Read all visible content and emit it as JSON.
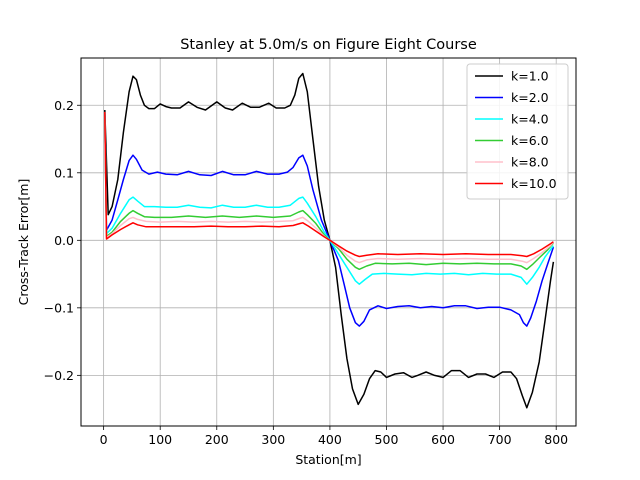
{
  "chart_data": {
    "type": "line",
    "title": "Stanley at 5.0m/s on Figure Eight Course",
    "xlabel": "Station[m]",
    "ylabel": "Cross-Track Error[m]",
    "xlim": [
      -40,
      835
    ],
    "ylim": [
      -0.275,
      0.27
    ],
    "xticks": [
      0,
      100,
      200,
      300,
      400,
      500,
      600,
      700,
      800
    ],
    "yticks": [
      -0.2,
      -0.1,
      0.0,
      0.1,
      0.2
    ],
    "xtick_labels": [
      "0",
      "100",
      "200",
      "300",
      "400",
      "500",
      "600",
      "700",
      "800"
    ],
    "ytick_labels": [
      "−0.2",
      "−0.1",
      "0.0",
      "0.1",
      "0.2"
    ],
    "grid": true,
    "legend_position": "top-right",
    "series": [
      {
        "name": "k=1.0",
        "color": "#000000",
        "points": [
          [
            2,
            0.193
          ],
          [
            8,
            0.038
          ],
          [
            15,
            0.05
          ],
          [
            25,
            0.09
          ],
          [
            35,
            0.16
          ],
          [
            45,
            0.22
          ],
          [
            52,
            0.243
          ],
          [
            58,
            0.238
          ],
          [
            65,
            0.215
          ],
          [
            72,
            0.2
          ],
          [
            80,
            0.195
          ],
          [
            90,
            0.195
          ],
          [
            100,
            0.202
          ],
          [
            110,
            0.198
          ],
          [
            120,
            0.196
          ],
          [
            135,
            0.196
          ],
          [
            150,
            0.205
          ],
          [
            165,
            0.197
          ],
          [
            180,
            0.193
          ],
          [
            200,
            0.205
          ],
          [
            215,
            0.196
          ],
          [
            228,
            0.193
          ],
          [
            245,
            0.203
          ],
          [
            260,
            0.197
          ],
          [
            275,
            0.197
          ],
          [
            292,
            0.203
          ],
          [
            305,
            0.196
          ],
          [
            320,
            0.196
          ],
          [
            330,
            0.2
          ],
          [
            338,
            0.215
          ],
          [
            345,
            0.24
          ],
          [
            352,
            0.247
          ],
          [
            360,
            0.22
          ],
          [
            370,
            0.15
          ],
          [
            380,
            0.08
          ],
          [
            390,
            0.03
          ],
          [
            400,
            0.0
          ],
          [
            410,
            -0.04
          ],
          [
            420,
            -0.11
          ],
          [
            430,
            -0.175
          ],
          [
            440,
            -0.22
          ],
          [
            450,
            -0.243
          ],
          [
            460,
            -0.228
          ],
          [
            470,
            -0.205
          ],
          [
            480,
            -0.193
          ],
          [
            490,
            -0.195
          ],
          [
            500,
            -0.203
          ],
          [
            515,
            -0.198
          ],
          [
            530,
            -0.196
          ],
          [
            545,
            -0.203
          ],
          [
            555,
            -0.2
          ],
          [
            570,
            -0.195
          ],
          [
            585,
            -0.2
          ],
          [
            600,
            -0.203
          ],
          [
            615,
            -0.193
          ],
          [
            630,
            -0.193
          ],
          [
            645,
            -0.203
          ],
          [
            660,
            -0.198
          ],
          [
            675,
            -0.198
          ],
          [
            690,
            -0.203
          ],
          [
            705,
            -0.195
          ],
          [
            720,
            -0.195
          ],
          [
            730,
            -0.205
          ],
          [
            740,
            -0.23
          ],
          [
            748,
            -0.248
          ],
          [
            758,
            -0.225
          ],
          [
            770,
            -0.18
          ],
          [
            780,
            -0.12
          ],
          [
            790,
            -0.06
          ],
          [
            795,
            -0.032
          ]
        ]
      },
      {
        "name": "k=2.0",
        "color": "#0000ff",
        "points": [
          [
            2,
            0.19
          ],
          [
            5,
            0.015
          ],
          [
            15,
            0.03
          ],
          [
            25,
            0.06
          ],
          [
            35,
            0.09
          ],
          [
            45,
            0.118
          ],
          [
            52,
            0.126
          ],
          [
            58,
            0.12
          ],
          [
            68,
            0.104
          ],
          [
            80,
            0.098
          ],
          [
            95,
            0.101
          ],
          [
            110,
            0.098
          ],
          [
            130,
            0.097
          ],
          [
            150,
            0.102
          ],
          [
            170,
            0.097
          ],
          [
            190,
            0.096
          ],
          [
            210,
            0.102
          ],
          [
            230,
            0.097
          ],
          [
            250,
            0.097
          ],
          [
            270,
            0.102
          ],
          [
            290,
            0.098
          ],
          [
            310,
            0.098
          ],
          [
            325,
            0.101
          ],
          [
            335,
            0.108
          ],
          [
            345,
            0.122
          ],
          [
            352,
            0.126
          ],
          [
            360,
            0.11
          ],
          [
            370,
            0.075
          ],
          [
            385,
            0.03
          ],
          [
            400,
            0.0
          ],
          [
            415,
            -0.03
          ],
          [
            425,
            -0.065
          ],
          [
            435,
            -0.1
          ],
          [
            445,
            -0.122
          ],
          [
            452,
            -0.127
          ],
          [
            460,
            -0.12
          ],
          [
            470,
            -0.103
          ],
          [
            485,
            -0.097
          ],
          [
            500,
            -0.101
          ],
          [
            520,
            -0.098
          ],
          [
            540,
            -0.097
          ],
          [
            560,
            -0.1
          ],
          [
            580,
            -0.098
          ],
          [
            600,
            -0.1
          ],
          [
            620,
            -0.097
          ],
          [
            640,
            -0.097
          ],
          [
            660,
            -0.101
          ],
          [
            680,
            -0.099
          ],
          [
            700,
            -0.099
          ],
          [
            720,
            -0.103
          ],
          [
            735,
            -0.11
          ],
          [
            742,
            -0.122
          ],
          [
            748,
            -0.127
          ],
          [
            755,
            -0.115
          ],
          [
            765,
            -0.09
          ],
          [
            775,
            -0.06
          ],
          [
            785,
            -0.035
          ],
          [
            795,
            -0.01
          ]
        ]
      },
      {
        "name": "k=4.0",
        "color": "#00ffff",
        "points": [
          [
            2,
            0.19
          ],
          [
            5,
            0.01
          ],
          [
            15,
            0.018
          ],
          [
            30,
            0.04
          ],
          [
            45,
            0.06
          ],
          [
            52,
            0.064
          ],
          [
            60,
            0.058
          ],
          [
            72,
            0.05
          ],
          [
            90,
            0.05
          ],
          [
            110,
            0.049
          ],
          [
            130,
            0.049
          ],
          [
            150,
            0.052
          ],
          [
            170,
            0.049
          ],
          [
            190,
            0.048
          ],
          [
            210,
            0.052
          ],
          [
            230,
            0.049
          ],
          [
            250,
            0.049
          ],
          [
            270,
            0.052
          ],
          [
            290,
            0.049
          ],
          [
            310,
            0.049
          ],
          [
            330,
            0.052
          ],
          [
            345,
            0.062
          ],
          [
            352,
            0.064
          ],
          [
            360,
            0.055
          ],
          [
            375,
            0.035
          ],
          [
            390,
            0.012
          ],
          [
            400,
            0.0
          ],
          [
            415,
            -0.02
          ],
          [
            430,
            -0.04
          ],
          [
            445,
            -0.06
          ],
          [
            452,
            -0.065
          ],
          [
            462,
            -0.058
          ],
          [
            475,
            -0.05
          ],
          [
            495,
            -0.049
          ],
          [
            520,
            -0.05
          ],
          [
            545,
            -0.051
          ],
          [
            570,
            -0.049
          ],
          [
            595,
            -0.05
          ],
          [
            620,
            -0.049
          ],
          [
            645,
            -0.051
          ],
          [
            670,
            -0.049
          ],
          [
            695,
            -0.05
          ],
          [
            720,
            -0.05
          ],
          [
            738,
            -0.055
          ],
          [
            748,
            -0.065
          ],
          [
            758,
            -0.055
          ],
          [
            770,
            -0.04
          ],
          [
            780,
            -0.025
          ],
          [
            795,
            -0.008
          ]
        ]
      },
      {
        "name": "k=6.0",
        "color": "#33cc33",
        "points": [
          [
            2,
            0.19
          ],
          [
            5,
            0.006
          ],
          [
            15,
            0.012
          ],
          [
            30,
            0.028
          ],
          [
            45,
            0.04
          ],
          [
            52,
            0.044
          ],
          [
            60,
            0.04
          ],
          [
            72,
            0.035
          ],
          [
            90,
            0.034
          ],
          [
            120,
            0.034
          ],
          [
            150,
            0.036
          ],
          [
            180,
            0.034
          ],
          [
            210,
            0.036
          ],
          [
            240,
            0.034
          ],
          [
            270,
            0.036
          ],
          [
            300,
            0.034
          ],
          [
            330,
            0.036
          ],
          [
            345,
            0.042
          ],
          [
            352,
            0.044
          ],
          [
            360,
            0.038
          ],
          [
            375,
            0.025
          ],
          [
            390,
            0.008
          ],
          [
            400,
            0.0
          ],
          [
            415,
            -0.012
          ],
          [
            430,
            -0.028
          ],
          [
            445,
            -0.04
          ],
          [
            452,
            -0.043
          ],
          [
            465,
            -0.038
          ],
          [
            480,
            -0.034
          ],
          [
            510,
            -0.035
          ],
          [
            540,
            -0.034
          ],
          [
            570,
            -0.036
          ],
          [
            600,
            -0.034
          ],
          [
            630,
            -0.035
          ],
          [
            660,
            -0.034
          ],
          [
            690,
            -0.035
          ],
          [
            720,
            -0.035
          ],
          [
            738,
            -0.038
          ],
          [
            748,
            -0.043
          ],
          [
            758,
            -0.036
          ],
          [
            770,
            -0.026
          ],
          [
            785,
            -0.014
          ],
          [
            795,
            -0.004
          ]
        ]
      },
      {
        "name": "k=8.0",
        "color": "#ffc0cb",
        "points": [
          [
            2,
            0.19
          ],
          [
            5,
            0.004
          ],
          [
            15,
            0.01
          ],
          [
            30,
            0.022
          ],
          [
            45,
            0.032
          ],
          [
            52,
            0.034
          ],
          [
            60,
            0.031
          ],
          [
            75,
            0.028
          ],
          [
            100,
            0.027
          ],
          [
            130,
            0.028
          ],
          [
            160,
            0.027
          ],
          [
            190,
            0.028
          ],
          [
            220,
            0.027
          ],
          [
            250,
            0.028
          ],
          [
            280,
            0.027
          ],
          [
            310,
            0.028
          ],
          [
            335,
            0.029
          ],
          [
            348,
            0.033
          ],
          [
            352,
            0.034
          ],
          [
            362,
            0.028
          ],
          [
            378,
            0.016
          ],
          [
            390,
            0.006
          ],
          [
            400,
            0.0
          ],
          [
            415,
            -0.01
          ],
          [
            430,
            -0.022
          ],
          [
            445,
            -0.031
          ],
          [
            452,
            -0.033
          ],
          [
            465,
            -0.029
          ],
          [
            485,
            -0.027
          ],
          [
            520,
            -0.028
          ],
          [
            560,
            -0.027
          ],
          [
            600,
            -0.028
          ],
          [
            640,
            -0.027
          ],
          [
            680,
            -0.028
          ],
          [
            720,
            -0.028
          ],
          [
            740,
            -0.031
          ],
          [
            748,
            -0.033
          ],
          [
            760,
            -0.027
          ],
          [
            775,
            -0.018
          ],
          [
            790,
            -0.008
          ],
          [
            795,
            -0.003
          ]
        ]
      },
      {
        "name": "k=10.0",
        "color": "#ff0000",
        "points": [
          [
            2,
            0.19
          ],
          [
            5,
            0.002
          ],
          [
            15,
            0.008
          ],
          [
            30,
            0.016
          ],
          [
            45,
            0.023
          ],
          [
            52,
            0.026
          ],
          [
            60,
            0.023
          ],
          [
            75,
            0.02
          ],
          [
            100,
            0.02
          ],
          [
            130,
            0.02
          ],
          [
            160,
            0.02
          ],
          [
            190,
            0.021
          ],
          [
            220,
            0.02
          ],
          [
            250,
            0.02
          ],
          [
            280,
            0.021
          ],
          [
            310,
            0.02
          ],
          [
            335,
            0.022
          ],
          [
            348,
            0.025
          ],
          [
            352,
            0.026
          ],
          [
            362,
            0.021
          ],
          [
            378,
            0.012
          ],
          [
            390,
            0.005
          ],
          [
            400,
            0.0
          ],
          [
            415,
            -0.008
          ],
          [
            430,
            -0.016
          ],
          [
            445,
            -0.022
          ],
          [
            452,
            -0.024
          ],
          [
            465,
            -0.022
          ],
          [
            485,
            -0.02
          ],
          [
            520,
            -0.021
          ],
          [
            560,
            -0.02
          ],
          [
            600,
            -0.021
          ],
          [
            640,
            -0.02
          ],
          [
            680,
            -0.021
          ],
          [
            720,
            -0.021
          ],
          [
            740,
            -0.023
          ],
          [
            748,
            -0.024
          ],
          [
            760,
            -0.02
          ],
          [
            775,
            -0.013
          ],
          [
            790,
            -0.005
          ],
          [
            795,
            -0.002
          ]
        ]
      }
    ]
  }
}
